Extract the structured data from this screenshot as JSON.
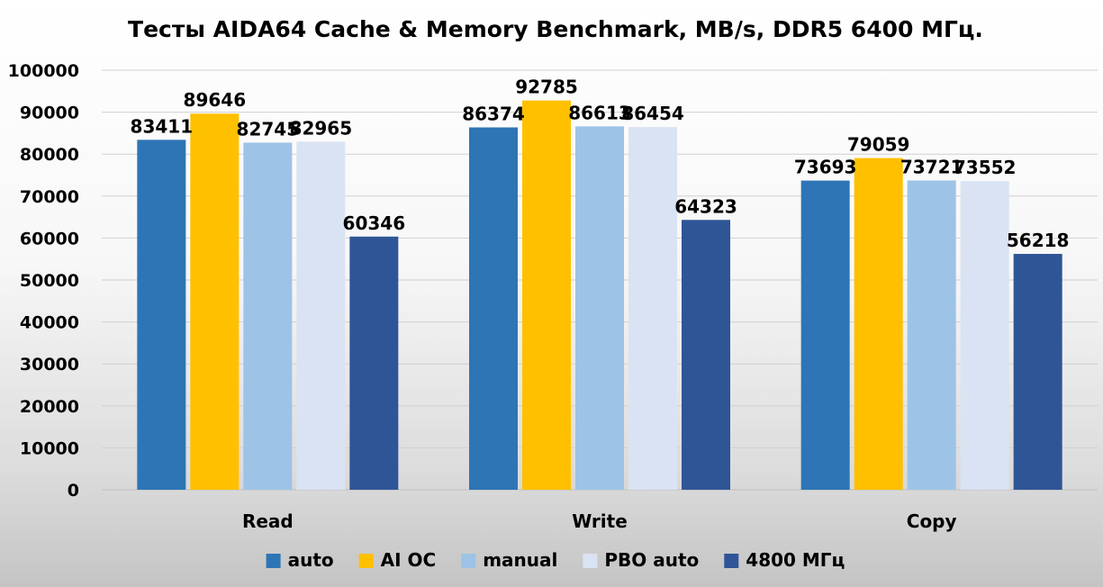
{
  "chart_data": {
    "type": "bar",
    "title": "Тесты AIDA64 Cache & Memory Benchmark, MB/s, DDR5 6400 МГц.",
    "categories": [
      "Read",
      "Write",
      "Copy"
    ],
    "series": [
      {
        "name": "auto",
        "color": "#2e75b6",
        "values": [
          83411,
          86374,
          73693
        ]
      },
      {
        "name": "AI OC",
        "color": "#ffc000",
        "values": [
          89646,
          92785,
          79059
        ]
      },
      {
        "name": "manual",
        "color": "#9dc3e6",
        "values": [
          82745,
          86613,
          73721
        ]
      },
      {
        "name": "PBO auto",
        "color": "#dae3f3",
        "values": [
          82965,
          86454,
          73552
        ]
      },
      {
        "name": "4800 МГц",
        "color": "#2f5597",
        "values": [
          60346,
          64323,
          56218
        ]
      }
    ],
    "ylim": [
      0,
      100000
    ],
    "yticks": [
      0,
      10000,
      20000,
      30000,
      40000,
      50000,
      60000,
      70000,
      80000,
      90000,
      100000
    ],
    "xlabel": "",
    "ylabel": "",
    "grid": true,
    "legend_position": "bottom"
  }
}
